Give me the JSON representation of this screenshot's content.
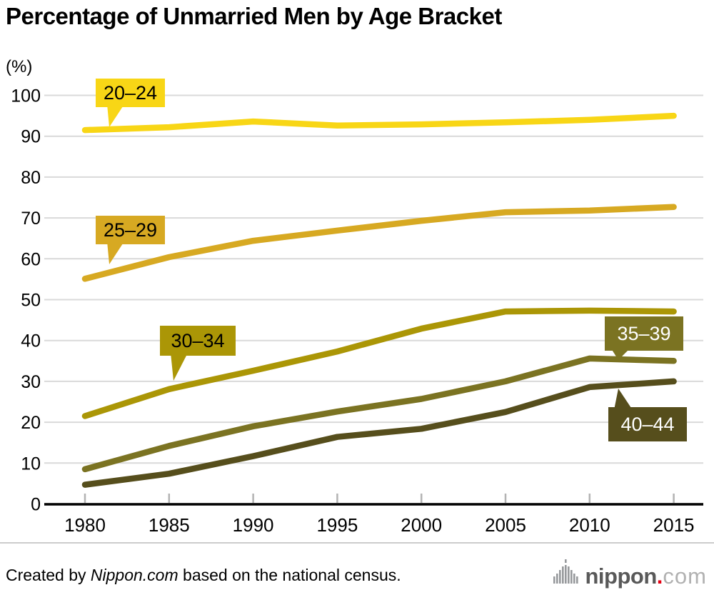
{
  "title": "Percentage of Unmarried Men by Age Bracket",
  "y_unit_label": "(%)",
  "chart_data": {
    "type": "line",
    "title": "Percentage of Unmarried Men by Age Bracket",
    "ylabel": "(%)",
    "xlabel": "",
    "x": [
      1980,
      1985,
      1990,
      1995,
      2000,
      2005,
      2010,
      2015
    ],
    "xlim": [
      1980,
      2015
    ],
    "ylim": [
      0,
      100
    ],
    "yticks": [
      0,
      10,
      20,
      30,
      40,
      50,
      60,
      70,
      80,
      90,
      100
    ],
    "grid": true,
    "legend_position": "inline-callout-labels",
    "series": [
      {
        "name": "20–24",
        "color": "#f8d616",
        "label_text_color": "#000000",
        "values": [
          91.5,
          92.2,
          93.6,
          92.6,
          92.9,
          93.4,
          94.0,
          95.0
        ]
      },
      {
        "name": "25–29",
        "color": "#d7a922",
        "label_text_color": "#000000",
        "values": [
          55.1,
          60.4,
          64.4,
          66.9,
          69.3,
          71.4,
          71.8,
          72.7
        ]
      },
      {
        "name": "30–34",
        "color": "#ab9606",
        "label_text_color": "#000000",
        "values": [
          21.5,
          28.1,
          32.6,
          37.3,
          42.9,
          47.1,
          47.3,
          47.1
        ]
      },
      {
        "name": "35–39",
        "color": "#7b7322",
        "label_text_color": "#ffffff",
        "values": [
          8.5,
          14.2,
          19.0,
          22.6,
          25.7,
          30.0,
          35.6,
          35.0
        ]
      },
      {
        "name": "40–44",
        "color": "#564e1c",
        "label_text_color": "#ffffff",
        "values": [
          4.7,
          7.4,
          11.7,
          16.4,
          18.4,
          22.5,
          28.6,
          30.0
        ]
      }
    ]
  },
  "footer": {
    "credit_prefix": "Created by ",
    "credit_source": "Nippon.com",
    "credit_suffix": " based on the national census.",
    "logo": {
      "icon": "audio-wave-icon",
      "word": "nippon",
      "dot": ".",
      "tld": "com"
    }
  },
  "colors": {
    "grid": "#d9d9d9",
    "axis": "#000000",
    "tick": "#b3b3b3",
    "divider": "#cccccc",
    "logo_word": "#595959",
    "logo_dot": "#e60012",
    "logo_tld": "#b1b1b1",
    "logo_wave": "#97999c"
  }
}
